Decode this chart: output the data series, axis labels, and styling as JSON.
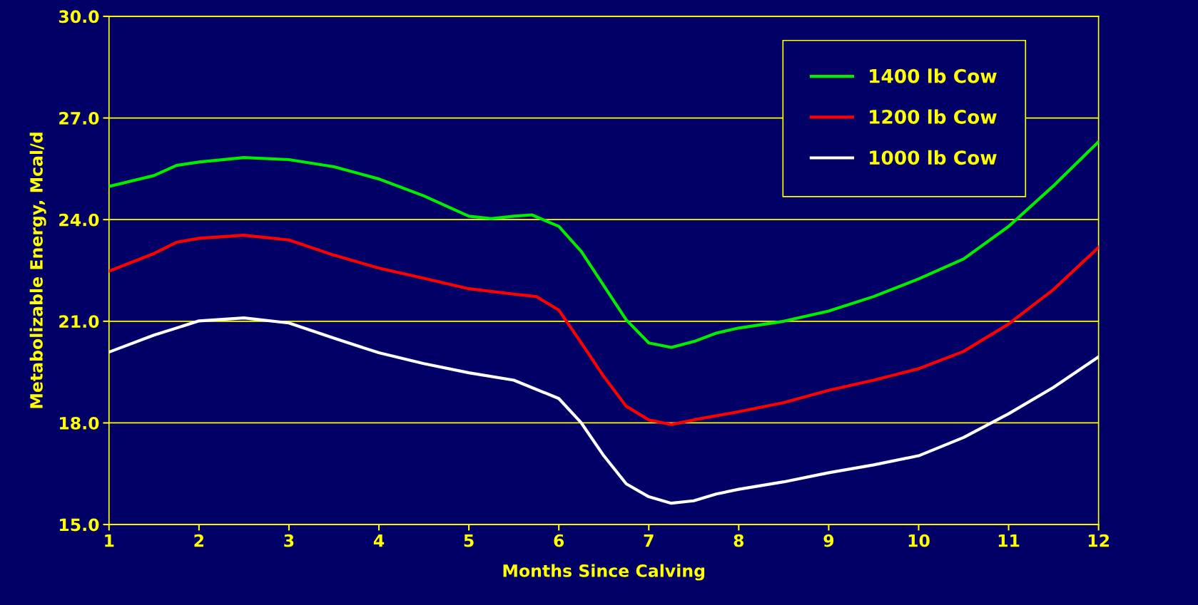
{
  "chart_data": {
    "type": "line",
    "xlabel": "Months Since Calving",
    "ylabel": "Metabolizable Energy, Mcal/d",
    "xlim": [
      1,
      12
    ],
    "xticks": [
      1,
      2,
      3,
      4,
      5,
      6,
      7,
      8,
      9,
      10,
      11,
      12
    ],
    "ylim": [
      15,
      30
    ],
    "yticks": [
      {
        "value": 15,
        "label": "15.0"
      },
      {
        "value": 18,
        "label": "18.0"
      },
      {
        "value": 21,
        "label": "21.0"
      },
      {
        "value": 24,
        "label": "24.0"
      },
      {
        "value": 27,
        "label": "27.0"
      },
      {
        "value": 30,
        "label": "30.0"
      }
    ],
    "grid": "y",
    "legend": "top right",
    "marker": "none",
    "line_style": "solid",
    "series": [
      {
        "name": "1400 lb Cow",
        "color": "#00ee00",
        "x": [
          1,
          1.5,
          1.75,
          2,
          2.5,
          3,
          3.5,
          4,
          4.5,
          5,
          5.25,
          5.5,
          5.7,
          6,
          6.25,
          6.5,
          6.75,
          7,
          7.25,
          7.5,
          7.75,
          8,
          8.5,
          9,
          9.5,
          10,
          10.5,
          11,
          11.5,
          12
        ],
        "values": [
          24.98,
          25.3,
          25.6,
          25.7,
          25.83,
          25.77,
          25.56,
          25.2,
          24.7,
          24.1,
          24.03,
          24.1,
          24.14,
          23.8,
          23.06,
          22.05,
          21.04,
          20.36,
          20.23,
          20.4,
          20.65,
          20.8,
          21.0,
          21.3,
          21.73,
          22.25,
          22.84,
          23.8,
          25.0,
          26.3
        ]
      },
      {
        "name": "1200 lb Cow",
        "color": "#ff0000",
        "x": [
          1,
          1.5,
          1.75,
          2,
          2.5,
          3,
          3.5,
          4,
          4.5,
          5,
          5.5,
          5.75,
          6,
          6.25,
          6.5,
          6.75,
          7,
          7.25,
          7.5,
          8,
          8.5,
          9,
          9.5,
          10,
          10.5,
          11,
          11.5,
          12
        ],
        "values": [
          22.48,
          23.0,
          23.33,
          23.45,
          23.54,
          23.4,
          22.95,
          22.57,
          22.27,
          21.96,
          21.8,
          21.73,
          21.33,
          20.36,
          19.37,
          18.49,
          18.09,
          17.95,
          18.09,
          18.33,
          18.6,
          18.96,
          19.26,
          19.6,
          20.11,
          20.92,
          21.94,
          23.18
        ]
      },
      {
        "name": "1000 lb Cow",
        "color": "#ffffff",
        "x": [
          1,
          1.5,
          2,
          2.5,
          3,
          3.5,
          4,
          4.5,
          5,
          5.5,
          6,
          6.25,
          6.5,
          6.75,
          7,
          7.25,
          7.5,
          7.75,
          8,
          8.5,
          9,
          9.5,
          10,
          10.5,
          11,
          11.5,
          12
        ],
        "values": [
          20.09,
          20.59,
          21.01,
          21.1,
          20.95,
          20.5,
          20.07,
          19.75,
          19.48,
          19.26,
          18.72,
          18.0,
          17.03,
          16.2,
          15.82,
          15.63,
          15.7,
          15.9,
          16.04,
          16.26,
          16.53,
          16.76,
          17.03,
          17.57,
          18.27,
          19.05,
          19.95
        ]
      }
    ]
  }
}
